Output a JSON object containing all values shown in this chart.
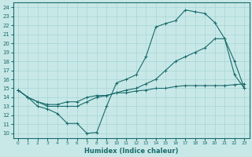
{
  "xlabel": "Humidex (Indice chaleur)",
  "bg_color": "#c8e8e8",
  "grid_color": "#a8d4d4",
  "line_color": "#1a6b6b",
  "xlim": [
    -0.5,
    23.5
  ],
  "ylim": [
    9.5,
    24.5
  ],
  "xticks": [
    0,
    1,
    2,
    3,
    4,
    5,
    6,
    7,
    8,
    9,
    10,
    11,
    12,
    13,
    14,
    15,
    16,
    17,
    18,
    19,
    20,
    21,
    22,
    23
  ],
  "yticks": [
    10,
    11,
    12,
    13,
    14,
    15,
    16,
    17,
    18,
    19,
    20,
    21,
    22,
    23,
    24
  ],
  "line1_x": [
    0,
    1,
    2,
    3,
    4,
    5,
    6,
    7,
    8,
    9,
    10,
    11,
    12,
    13,
    14,
    15,
    16,
    17,
    18,
    19,
    20,
    21,
    22,
    23
  ],
  "line1_y": [
    14.8,
    14.0,
    13.0,
    12.7,
    12.2,
    11.1,
    11.1,
    10.0,
    10.1,
    13.0,
    15.6,
    16.0,
    16.5,
    18.5,
    21.8,
    22.2,
    22.5,
    23.7,
    23.5,
    23.3,
    22.3,
    20.5,
    16.5,
    15.0
  ],
  "line2_x": [
    0,
    1,
    2,
    3,
    4,
    5,
    6,
    7,
    8,
    9,
    10,
    11,
    12,
    13,
    14,
    15,
    16,
    17,
    18,
    19,
    20,
    21,
    22,
    23
  ],
  "line2_y": [
    14.8,
    14.0,
    13.5,
    13.0,
    13.0,
    13.0,
    13.0,
    13.5,
    14.0,
    14.2,
    14.5,
    14.8,
    15.0,
    15.5,
    16.0,
    17.0,
    18.0,
    18.5,
    19.0,
    19.5,
    20.5,
    20.5,
    18.0,
    15.0
  ],
  "line3_x": [
    0,
    1,
    2,
    3,
    4,
    5,
    6,
    7,
    8,
    9,
    10,
    11,
    12,
    13,
    14,
    15,
    16,
    17,
    18,
    19,
    20,
    21,
    22,
    23
  ],
  "line3_y": [
    14.8,
    14.0,
    13.5,
    13.2,
    13.2,
    13.5,
    13.5,
    14.0,
    14.2,
    14.2,
    14.5,
    14.5,
    14.7,
    14.8,
    15.0,
    15.0,
    15.2,
    15.3,
    15.3,
    15.3,
    15.3,
    15.3,
    15.4,
    15.5
  ]
}
